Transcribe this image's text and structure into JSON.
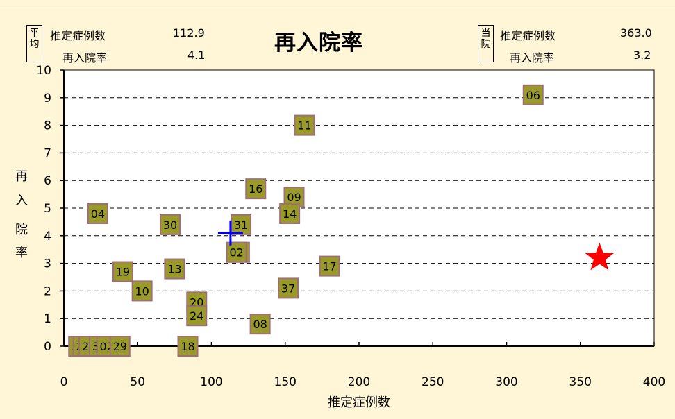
{
  "header": {
    "title": "再入院率",
    "left_box": {
      "tag": "平均",
      "rows": [
        {
          "label": "推定症例数",
          "value": "112.9"
        },
        {
          "label": "再入院率",
          "value": "4.1"
        }
      ]
    },
    "right_box": {
      "tag": "当院",
      "rows": [
        {
          "label": "推定症例数",
          "value": "363.0"
        },
        {
          "label": "再入院率",
          "value": "3.2"
        }
      ]
    }
  },
  "chart_data": {
    "type": "scatter",
    "title": "再入院率",
    "xlabel": "推定症例数",
    "ylabel": "再入院率",
    "xlim": [
      0,
      400
    ],
    "ylim": [
      0,
      10
    ],
    "x_ticks": [
      "0",
      "50",
      "100",
      "150",
      "200",
      "250",
      "300",
      "350",
      "400"
    ],
    "y_ticks": [
      "0",
      "1",
      "2",
      "3",
      "4",
      "5",
      "6",
      "7",
      "8",
      "9",
      "10"
    ],
    "grid": "horizontal dashed",
    "colors": {
      "marker_fill": "#9a9a2a",
      "marker_border": "#a06e78",
      "average_marker": "#0000ff",
      "own_hospital_marker": "#ff0000"
    },
    "points": [
      {
        "label": "06",
        "x": 318,
        "y": 9.1
      },
      {
        "label": "11",
        "x": 163,
        "y": 8.0
      },
      {
        "label": "16",
        "x": 130,
        "y": 5.7
      },
      {
        "label": "09",
        "x": 156,
        "y": 5.4
      },
      {
        "label": "14",
        "x": 153,
        "y": 4.8
      },
      {
        "label": "04",
        "x": 23,
        "y": 4.8
      },
      {
        "label": "30",
        "x": 72,
        "y": 4.4
      },
      {
        "label": "31",
        "x": 120,
        "y": 4.4
      },
      {
        "label": "07",
        "x": 119,
        "y": 3.4
      },
      {
        "label": "02",
        "x": 117,
        "y": 3.4
      },
      {
        "label": "17",
        "x": 180,
        "y": 2.9
      },
      {
        "label": "19",
        "x": 40,
        "y": 2.7
      },
      {
        "label": "13",
        "x": 75,
        "y": 2.8
      },
      {
        "label": "37",
        "x": 152,
        "y": 2.1
      },
      {
        "label": "10",
        "x": 53,
        "y": 2.0
      },
      {
        "label": "20",
        "x": 90,
        "y": 1.6
      },
      {
        "label": "24",
        "x": 90,
        "y": 1.1
      },
      {
        "label": "08",
        "x": 133,
        "y": 0.8
      },
      {
        "label": "32",
        "x": 10,
        "y": 0
      },
      {
        "label": "23",
        "x": 13,
        "y": 0
      },
      {
        "label": "22",
        "x": 17,
        "y": 0
      },
      {
        "label": "30",
        "x": 24,
        "y": 0
      },
      {
        "label": "02",
        "x": 29,
        "y": 0
      },
      {
        "label": "29",
        "x": 38,
        "y": 0
      },
      {
        "label": "18",
        "x": 84,
        "y": 0
      }
    ],
    "average": {
      "x": 112.9,
      "y": 4.1
    },
    "own_hospital": {
      "x": 363.0,
      "y": 3.2
    }
  }
}
